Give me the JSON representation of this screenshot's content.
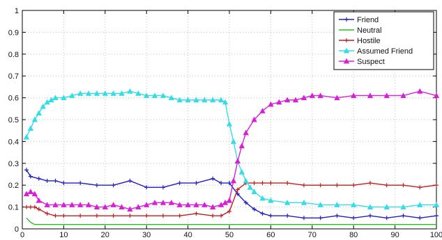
{
  "chart_data": {
    "type": "line",
    "title": "",
    "xlabel": "",
    "ylabel": "",
    "xlim": [
      0,
      100
    ],
    "ylim": [
      0,
      1
    ],
    "x_ticks": [
      0,
      10,
      20,
      30,
      40,
      50,
      60,
      70,
      80,
      90,
      100
    ],
    "y_ticks": [
      0,
      0.1,
      0.2,
      0.3,
      0.4,
      0.5,
      0.6,
      0.7,
      0.8,
      0.9,
      1
    ],
    "x_tick_labels": [
      "0",
      "10",
      "20",
      "30",
      "40",
      "50",
      "60",
      "70",
      "80",
      "90",
      "100"
    ],
    "y_tick_labels": [
      "0",
      "0.1",
      "0.2",
      "0.3",
      "0.4",
      "0.5",
      "0.6",
      "0.7",
      "0.8",
      "0.9",
      "1"
    ],
    "grid": true,
    "legend_position": "top-right",
    "series": [
      {
        "name": "Friend",
        "color": "#1f1fbf",
        "marker": "plus",
        "x": [
          1,
          2,
          4,
          6,
          8,
          10,
          14,
          18,
          22,
          26,
          30,
          34,
          38,
          42,
          46,
          48,
          50,
          52,
          54,
          56,
          58,
          60,
          64,
          68,
          72,
          76,
          80,
          84,
          88,
          92,
          96,
          100
        ],
        "values": [
          0.27,
          0.24,
          0.23,
          0.22,
          0.22,
          0.21,
          0.21,
          0.2,
          0.2,
          0.22,
          0.19,
          0.19,
          0.21,
          0.21,
          0.23,
          0.21,
          0.21,
          0.16,
          0.12,
          0.09,
          0.07,
          0.06,
          0.06,
          0.05,
          0.05,
          0.06,
          0.05,
          0.06,
          0.05,
          0.06,
          0.05,
          0.06
        ]
      },
      {
        "name": "Neutral",
        "color": "#1fbf1f",
        "marker": "none",
        "x": [
          1,
          2,
          3,
          4,
          6,
          10,
          20,
          30,
          40,
          50,
          60,
          70,
          80,
          90,
          100
        ],
        "values": [
          0.05,
          0.03,
          0.02,
          0.02,
          0.02,
          0.02,
          0.02,
          0.02,
          0.02,
          0.02,
          0.02,
          0.02,
          0.02,
          0.02,
          0.02
        ]
      },
      {
        "name": "Hostile",
        "color": "#bf1f1f",
        "marker": "plus",
        "x": [
          1,
          2,
          3,
          4,
          6,
          8,
          10,
          14,
          18,
          22,
          26,
          30,
          34,
          38,
          42,
          46,
          48,
          50,
          52,
          54,
          56,
          58,
          60,
          64,
          68,
          72,
          76,
          80,
          84,
          88,
          92,
          96,
          100
        ],
        "values": [
          0.1,
          0.1,
          0.1,
          0.09,
          0.07,
          0.06,
          0.06,
          0.06,
          0.06,
          0.06,
          0.06,
          0.06,
          0.06,
          0.06,
          0.07,
          0.06,
          0.06,
          0.08,
          0.18,
          0.21,
          0.21,
          0.21,
          0.21,
          0.21,
          0.2,
          0.2,
          0.2,
          0.2,
          0.21,
          0.2,
          0.2,
          0.19,
          0.2
        ]
      },
      {
        "name": "Assumed Friend",
        "color": "#33dde6",
        "marker": "triangle",
        "x": [
          1,
          2,
          3,
          4,
          5,
          6,
          7,
          8,
          10,
          12,
          14,
          16,
          18,
          20,
          22,
          24,
          26,
          28,
          30,
          32,
          34,
          36,
          38,
          40,
          42,
          44,
          46,
          48,
          49,
          50,
          51,
          52,
          53,
          54,
          55,
          56,
          58,
          60,
          64,
          68,
          72,
          76,
          80,
          84,
          88,
          92,
          96,
          100
        ],
        "values": [
          0.42,
          0.46,
          0.5,
          0.53,
          0.56,
          0.58,
          0.59,
          0.6,
          0.6,
          0.61,
          0.62,
          0.62,
          0.62,
          0.62,
          0.62,
          0.62,
          0.63,
          0.62,
          0.61,
          0.61,
          0.61,
          0.6,
          0.59,
          0.59,
          0.59,
          0.59,
          0.59,
          0.59,
          0.58,
          0.48,
          0.4,
          0.31,
          0.26,
          0.22,
          0.19,
          0.17,
          0.14,
          0.13,
          0.12,
          0.12,
          0.11,
          0.11,
          0.11,
          0.1,
          0.1,
          0.1,
          0.11,
          0.11
        ]
      },
      {
        "name": "Suspect",
        "color": "#d61fd6",
        "marker": "triangle",
        "x": [
          1,
          2,
          3,
          4,
          6,
          8,
          10,
          12,
          14,
          16,
          18,
          20,
          22,
          24,
          26,
          28,
          30,
          32,
          34,
          36,
          38,
          40,
          42,
          44,
          46,
          48,
          49,
          50,
          51,
          52,
          53,
          54,
          56,
          58,
          60,
          62,
          64,
          66,
          68,
          70,
          72,
          76,
          80,
          84,
          88,
          92,
          96,
          100
        ],
        "values": [
          0.16,
          0.17,
          0.16,
          0.13,
          0.11,
          0.11,
          0.11,
          0.11,
          0.11,
          0.11,
          0.1,
          0.1,
          0.11,
          0.1,
          0.09,
          0.1,
          0.11,
          0.12,
          0.12,
          0.12,
          0.11,
          0.11,
          0.11,
          0.11,
          0.1,
          0.11,
          0.12,
          0.13,
          0.22,
          0.31,
          0.38,
          0.44,
          0.5,
          0.54,
          0.57,
          0.58,
          0.59,
          0.59,
          0.6,
          0.61,
          0.61,
          0.6,
          0.61,
          0.61,
          0.61,
          0.61,
          0.63,
          0.61
        ]
      }
    ]
  }
}
